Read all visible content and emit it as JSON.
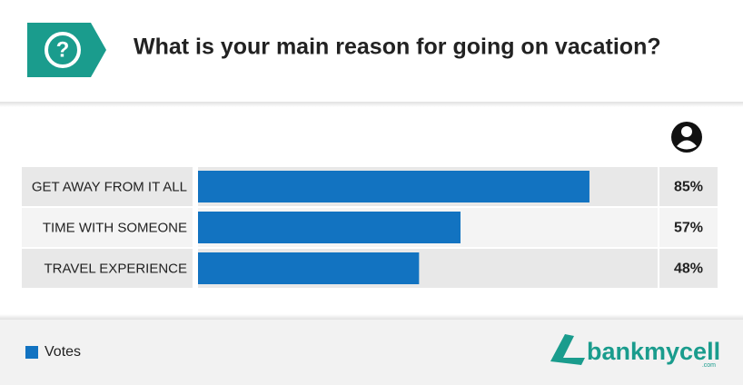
{
  "chart_data": {
    "type": "bar",
    "orientation": "horizontal",
    "title": "What is your main reason for going on vacation?",
    "categories": [
      "GET AWAY FROM IT ALL",
      "TIME WITH SOMEONE",
      "TRAVEL EXPERIENCE"
    ],
    "series": [
      {
        "name": "Votes",
        "color": "#1273c1",
        "values": [
          85,
          57,
          48
        ],
        "value_labels": [
          "85%",
          "57%",
          "48%"
        ]
      }
    ],
    "xlim": [
      0,
      100
    ]
  },
  "logo": {
    "text": "bankmycell",
    "suffix": ".com"
  }
}
